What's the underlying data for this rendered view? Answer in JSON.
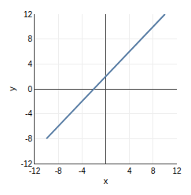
{
  "chart_data": {
    "type": "line",
    "x": [
      -10,
      10
    ],
    "values": [
      -8,
      12
    ],
    "color": "#5b7fa6",
    "xlabel": "x",
    "ylabel": "y",
    "xlim": [
      -12,
      12
    ],
    "ylim": [
      -12,
      12
    ],
    "xticks": [
      -12,
      -8,
      -4,
      4,
      8,
      12
    ],
    "yticks": [
      -12,
      -8,
      -4,
      0,
      4,
      8,
      12
    ],
    "grid": true
  }
}
